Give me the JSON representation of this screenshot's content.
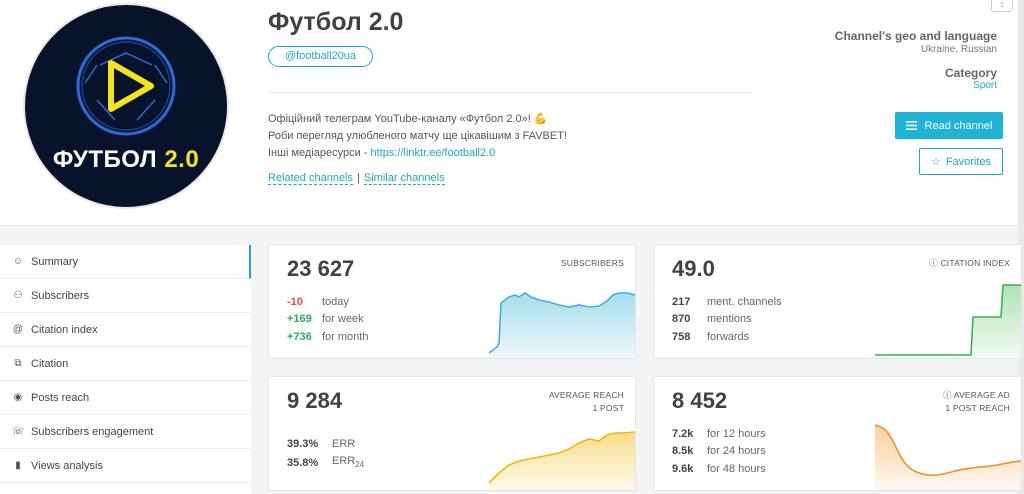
{
  "channel": {
    "title": "Футбол 2.0",
    "handle": "@football20ua",
    "avatar_word": "ФУТБОЛ",
    "avatar_version": "2.0",
    "description_line1": "Офіційний телеграм YouTube-каналу «Футбол 2.0»! ",
    "description_emoji": "💪",
    "description_line2": "Роби перегляд улюбленого матчу ще цікавішим з FAVBET!",
    "description_line3_prefix": "Інші медіаресурси - ",
    "description_link": "https://linktr.ee/football2.0",
    "related_label": "Related channels",
    "links_sep": "|",
    "similar_label": "Similar channels"
  },
  "meta": {
    "geo_label": "Channel's geo and language",
    "geo_value": "Ukraine, Russian",
    "category_label": "Category",
    "category_value": "Sport"
  },
  "actions": {
    "read_label": "Read channel",
    "favorites_label": "Favorites",
    "more_label": "⋮"
  },
  "sidebar": {
    "items": [
      {
        "label": "Summary",
        "icon": "summary-icon",
        "glyph": "☺"
      },
      {
        "label": "Subscribers",
        "icon": "subscribers-icon",
        "glyph": "⚇"
      },
      {
        "label": "Citation index",
        "icon": "at-icon",
        "glyph": "@"
      },
      {
        "label": "Citation",
        "icon": "citation-icon",
        "glyph": "⧉"
      },
      {
        "label": "Posts reach",
        "icon": "eye-icon",
        "glyph": "◉"
      },
      {
        "label": "Subscribers engagement",
        "icon": "engagement-icon",
        "glyph": "☏"
      },
      {
        "label": "Views analysis",
        "icon": "bar-chart-icon",
        "glyph": "▮"
      }
    ]
  },
  "cards": {
    "subscribers": {
      "value": "23 627",
      "label": "SUBSCRIBERS",
      "rows": [
        {
          "value": "-10",
          "text": "today"
        },
        {
          "value": "+169",
          "text": "for week"
        },
        {
          "value": "+736",
          "text": "for month"
        }
      ],
      "color": "#5bc0de"
    },
    "citation": {
      "value": "49.0",
      "label": "CITATION INDEX",
      "rows": [
        {
          "value": "217",
          "text": "ment. channels"
        },
        {
          "value": "870",
          "text": "mentions"
        },
        {
          "value": "758",
          "text": "forwards"
        }
      ],
      "color": "#4cc15a"
    },
    "reach": {
      "value": "9 284",
      "label_line1": "AVERAGE REACH",
      "label_line2": "1 POST",
      "rows": [
        {
          "value": "39.3%",
          "text": "ERR"
        },
        {
          "value": "35.8%",
          "text": "ERR",
          "sub": "24"
        }
      ],
      "color": "#f5c02a"
    },
    "ad_reach": {
      "value": "8 452",
      "label_line1": "AVERAGE AD",
      "label_line2": "1 POST REACH",
      "rows": [
        {
          "value": "7.2k",
          "text": "for 12 hours"
        },
        {
          "value": "8.5k",
          "text": "for 24 hours"
        },
        {
          "value": "9.6k",
          "text": "for 48 hours"
        }
      ],
      "color": "#f5a03a"
    }
  }
}
